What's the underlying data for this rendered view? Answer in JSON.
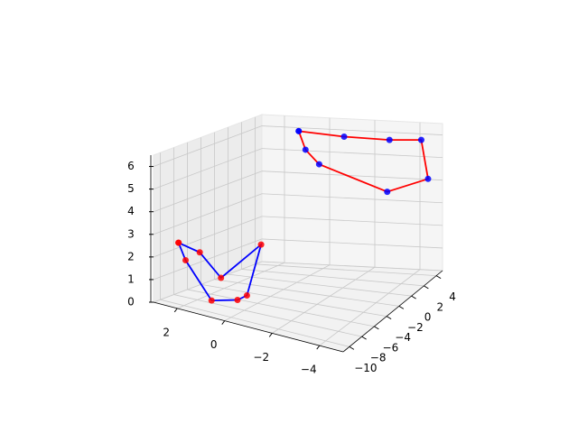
{
  "chart_data": {
    "type": "scatter3d",
    "xlim": [
      -5,
      3
    ],
    "ylim": [
      -11,
      5
    ],
    "zlim": [
      0,
      6.5
    ],
    "xticks": [
      {
        "value": -4,
        "label": "−4"
      },
      {
        "value": -2,
        "label": "−2"
      },
      0,
      2
    ],
    "yticks": [
      {
        "value": -10,
        "label": "−10"
      },
      {
        "value": -8,
        "label": "−8"
      },
      {
        "value": -6,
        "label": "−6"
      },
      {
        "value": -4,
        "label": "−4"
      },
      {
        "value": -2,
        "label": "−2"
      },
      0,
      2,
      4
    ],
    "zticks": [
      0,
      1,
      2,
      3,
      4,
      5,
      6
    ],
    "grid": true,
    "series": [
      {
        "marker_color": "#ff0000",
        "line_color": "#0000ff",
        "x": [
          2.4,
          1.5,
          0.6,
          -1.1,
          -0.5,
          -0.1,
          1.0,
          2.1,
          2.4
        ],
        "y": [
          -9.4,
          -9.4,
          -9.4,
          -9.4,
          -9.4,
          -9.4,
          -9.4,
          -9.4,
          -9.4
        ],
        "z": [
          2.6,
          2.4,
          1.5,
          3.4,
          1.0,
          0.7,
          0.4,
          1.9,
          2.6
        ]
      },
      {
        "marker_color": "#0000ff",
        "line_color": "#ff0000",
        "x": [
          0.9,
          -1.1,
          -3.1,
          -4.5,
          -4.8,
          -3.0,
          0.0,
          0.6,
          0.9
        ],
        "y": [
          3.4,
          3.4,
          3.4,
          3.4,
          3.4,
          3.4,
          3.4,
          3.4,
          3.4
        ],
        "z": [
          6.1,
          6.0,
          6.0,
          6.1,
          4.4,
          3.7,
          4.7,
          5.3,
          6.1
        ]
      }
    ]
  }
}
